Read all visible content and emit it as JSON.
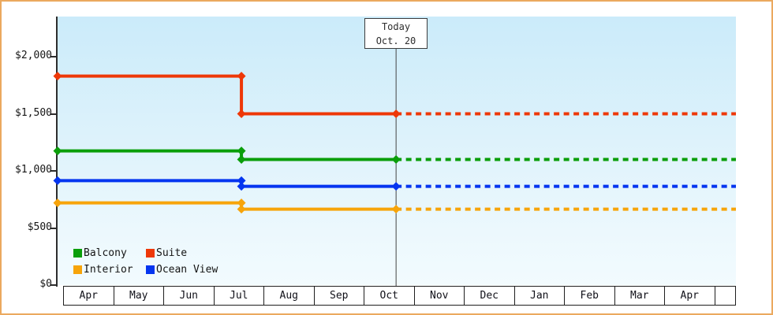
{
  "colors": {
    "frame_border": "#eba95f",
    "plot_gradient_top": "#cbebfa",
    "plot_gradient_bottom": "#f2fbfe",
    "axis": "#2d2d2d",
    "today_line": "#444444",
    "text": "#161616"
  },
  "chart_data": {
    "type": "line",
    "title": "",
    "xlabel": "",
    "ylabel": "",
    "ylim": [
      0,
      2350
    ],
    "grid": false,
    "legend_position": "bottom-left",
    "y_axis": {
      "ticks": [
        {
          "label": "$2,000",
          "value": 2000
        },
        {
          "label": "$1,500",
          "value": 1500
        },
        {
          "label": "$1,000",
          "value": 1000
        },
        {
          "label": "$500",
          "value": 500
        },
        {
          "label": "$0",
          "value": 0
        }
      ]
    },
    "x_months": [
      "Apr",
      "May",
      "Jun",
      "Jul",
      "Aug",
      "Sep",
      "Oct",
      "Nov",
      "Dec",
      "Jan",
      "Feb",
      "Mar",
      "Apr"
    ],
    "today_marker": {
      "line1": "Today",
      "line2": "Oct. 20"
    },
    "event_x_frac": {
      "price_drop": 0.271,
      "today": 0.499
    },
    "projection_style": "dashed",
    "series": [
      {
        "name": "Balcony",
        "color": "#0a9e0a",
        "price_start": 1175,
        "price_current": 1100
      },
      {
        "name": "Suite",
        "color": "#ee3808",
        "price_start": 1830,
        "price_current": 1500
      },
      {
        "name": "Interior",
        "color": "#f7a40a",
        "price_start": 720,
        "price_current": 665
      },
      {
        "name": "Ocean View",
        "color": "#0435f0",
        "price_start": 915,
        "price_current": 865
      }
    ],
    "legend_items": [
      "Balcony",
      "Suite",
      "Interior",
      "Ocean View"
    ]
  }
}
